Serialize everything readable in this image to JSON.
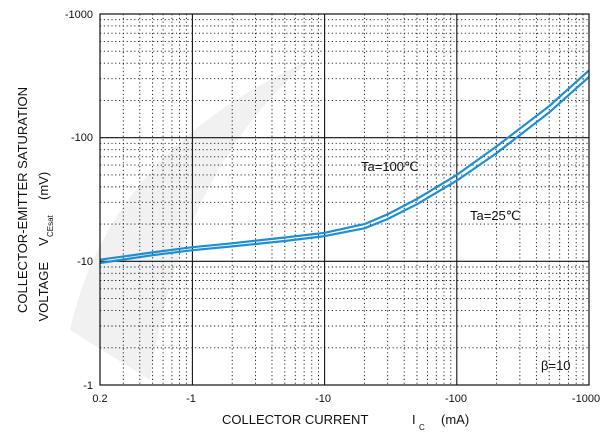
{
  "chart_data": {
    "type": "line",
    "title": "",
    "xlabel": "COLLECTOR CURRENT",
    "xlabel_symbol": "I",
    "xlabel_sub": "C",
    "xlabel_unit": "(mA)",
    "ylabel_line1": "COLLECTOR-EMITTER SATURATION",
    "ylabel_line2": "VOLTAGE",
    "ylabel_symbol": "V",
    "ylabel_sub": "CEsat",
    "ylabel_unit": "(mV)",
    "x_scale": "log",
    "y_scale": "log",
    "xlim": [
      -0.2,
      -1000
    ],
    "ylim": [
      -1,
      -1000
    ],
    "x_ticks": [
      "0.2",
      "-1",
      "-10",
      "-100",
      "-1000"
    ],
    "y_ticks": [
      "-1000",
      "-100",
      "-10",
      "-1"
    ],
    "grid": "major solid, minor dotted",
    "annotations": [
      "Ta=100℃",
      "Ta=25℃",
      "β=10"
    ],
    "series": [
      {
        "name": "Ta=100℃",
        "x": [
          -0.2,
          -0.5,
          -1,
          -2,
          -5,
          -10,
          -20,
          -30,
          -50,
          -100,
          -200,
          -500,
          -1000
        ],
        "y": [
          -10.3,
          -11.8,
          -13.0,
          -14.0,
          -15.6,
          -17.0,
          -20.0,
          -24.0,
          -32.0,
          -50.0,
          -85.0,
          -180.0,
          -350.0
        ]
      },
      {
        "name": "Ta=25℃",
        "x": [
          -0.2,
          -0.5,
          -1,
          -2,
          -5,
          -10,
          -20,
          -30,
          -50,
          -100,
          -200,
          -500,
          -1000
        ],
        "y": [
          -9.7,
          -11.2,
          -12.3,
          -13.2,
          -14.6,
          -16.0,
          -18.5,
          -22.0,
          -29.0,
          -45.0,
          -75.0,
          -160.0,
          -310.0
        ]
      }
    ]
  },
  "colors": {
    "curve": "#1f8fcf",
    "grid": "#111111"
  }
}
